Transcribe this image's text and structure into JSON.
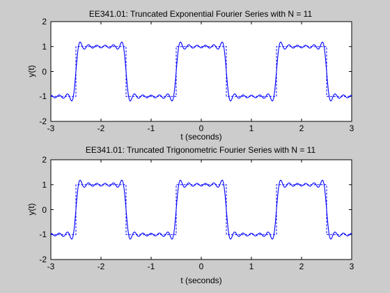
{
  "chart_data": [
    {
      "type": "line",
      "title": "EE341.01: Truncated Exponential Fourier Series with N = 11",
      "xlabel": "t (seconds)",
      "ylabel": "y(t)",
      "xlim": [
        -3,
        3
      ],
      "ylim": [
        -2,
        2
      ],
      "xticks": [
        -3,
        -2,
        -1,
        0,
        1,
        2,
        3
      ],
      "yticks": [
        -2,
        -1,
        0,
        1,
        2
      ],
      "xtick_labels": [
        "-3",
        "-2",
        "-1",
        "0",
        "1",
        "2",
        "3"
      ],
      "ytick_labels": [
        "-2",
        "-1",
        "0",
        "1",
        "2"
      ],
      "grid": false,
      "series": [
        {
          "kind": "fourier_approximation",
          "style": "solid",
          "color": "#0000ff",
          "harmonics": 11,
          "amplitude": 1,
          "period": 2,
          "phase_shift": 0.5,
          "x_range": [
            -3,
            3
          ]
        },
        {
          "kind": "square_wave",
          "style": "dashed",
          "color": "#0000ff",
          "amplitude": 1,
          "period": 2,
          "phase_shift": 0.5,
          "x_range": [
            -3,
            3
          ]
        }
      ]
    },
    {
      "type": "line",
      "title": "EE341.01: Truncated Trigonometric Fourier Series with N = 11",
      "xlabel": "t (seconds)",
      "ylabel": "y(t)",
      "xlim": [
        -3,
        3
      ],
      "ylim": [
        -2,
        2
      ],
      "xticks": [
        -3,
        -2,
        -1,
        0,
        1,
        2,
        3
      ],
      "yticks": [
        -2,
        -1,
        0,
        1,
        2
      ],
      "xtick_labels": [
        "-3",
        "-2",
        "-1",
        "0",
        "1",
        "2",
        "3"
      ],
      "ytick_labels": [
        "-2",
        "-1",
        "0",
        "1",
        "2"
      ],
      "grid": false,
      "series": [
        {
          "kind": "fourier_approximation",
          "style": "solid",
          "color": "#0000ff",
          "harmonics": 11,
          "amplitude": 1,
          "period": 2,
          "phase_shift": 0.5,
          "x_range": [
            -3,
            3
          ]
        },
        {
          "kind": "square_wave",
          "style": "dashed",
          "color": "#0000ff",
          "amplitude": 1,
          "period": 2,
          "phase_shift": 0.5,
          "x_range": [
            -3,
            3
          ]
        }
      ]
    }
  ],
  "colors": {
    "figure_background": "#cccccc",
    "axes_background": "#ffffff",
    "axes_edge": "#000000",
    "line": "#0000ff"
  }
}
